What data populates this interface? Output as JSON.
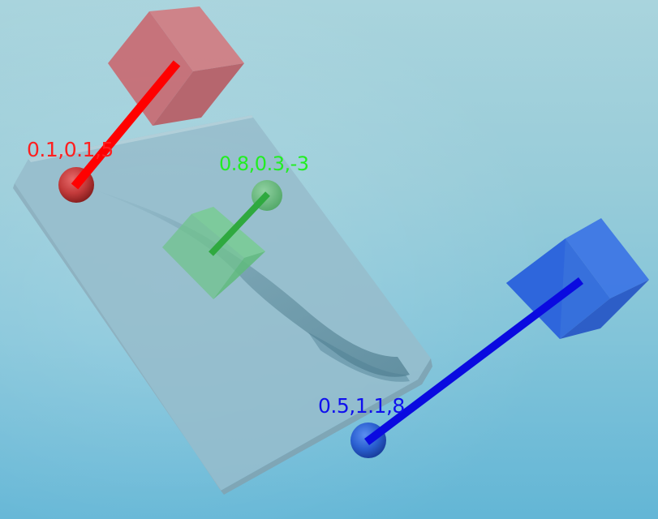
{
  "colors": {
    "red": "#ff1f1f",
    "green": "#22ee22",
    "blue": "#1010ee",
    "background": "#8ccbd8"
  },
  "markers": {
    "red": {
      "label": "0.1,0.1,5"
    },
    "green": {
      "label": "0.8,0.3,-3"
    },
    "blue": {
      "label": "0.5,1.1,8"
    }
  }
}
